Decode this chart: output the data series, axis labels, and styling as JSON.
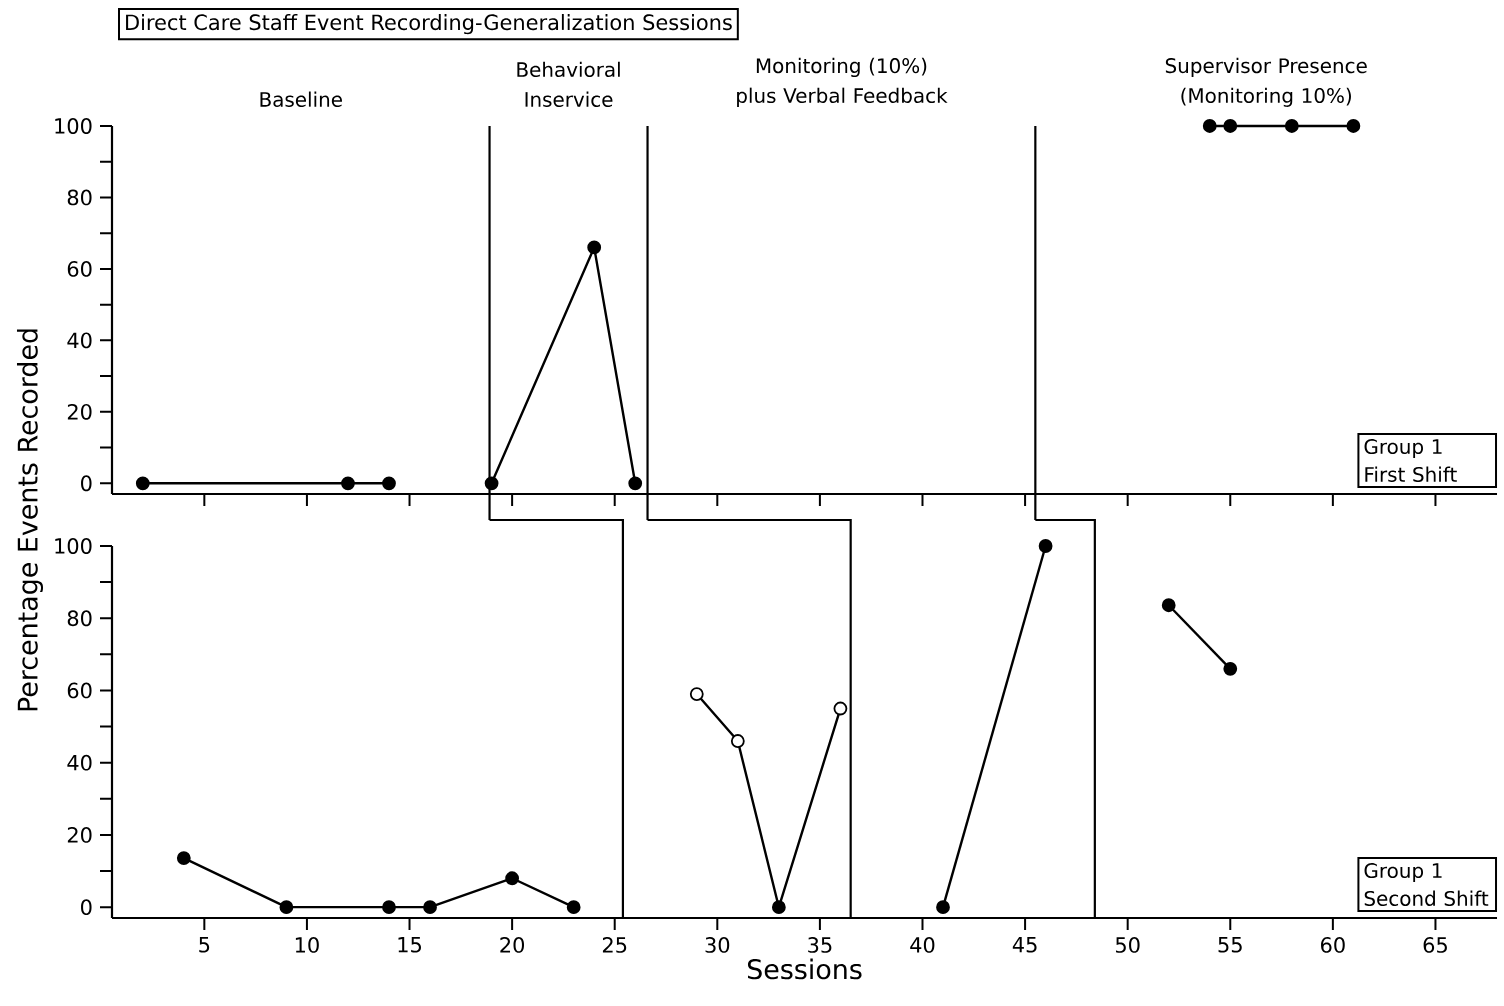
{
  "chart_data": [
    {
      "type": "line",
      "title": "Direct Care Staff Event Recording-Generalization Sessions",
      "ylabel": "Percentage Events Recorded",
      "xlim": [
        0.5,
        68
      ],
      "ylim": [
        -3,
        100
      ],
      "xticks": [
        5,
        10,
        15,
        20,
        25,
        30,
        35,
        40,
        45,
        50,
        55,
        60,
        65
      ],
      "yticks": [
        0,
        {
          "value": 10,
          "label": null
        },
        20,
        {
          "value": 30,
          "label": null
        },
        40,
        {
          "value": 50,
          "label": null
        },
        60,
        {
          "value": 70,
          "label": null
        },
        80,
        {
          "value": 90,
          "label": null
        },
        100
      ],
      "tick_labels": "y",
      "marker": "circle",
      "line_style": "solid",
      "series": [
        {
          "color": "#000000",
          "x": [
            2,
            12,
            14
          ],
          "values": [
            0,
            0,
            0
          ]
        },
        {
          "color": "#000000",
          "x": [
            19,
            24,
            26
          ],
          "values": [
            0,
            66,
            0
          ]
        },
        {
          "color": "#000000",
          "x": [
            54,
            55,
            58,
            61
          ],
          "values": [
            100,
            100,
            100,
            100
          ]
        }
      ],
      "ref_lines": [
        {
          "axis": "x",
          "value": 18.9,
          "color": "#000000"
        },
        {
          "axis": "x",
          "value": 26.6,
          "color": "#000000"
        },
        {
          "axis": "x",
          "value": 45.5,
          "color": "#000000"
        }
      ],
      "annotations": [
        "Baseline",
        "Behavioral Inservice",
        "Monitoring (10%) plus Verbal Feedback",
        "Supervisor Presence (Monitoring 10%)",
        "Group 1 First Shift"
      ]
    },
    {
      "type": "line",
      "xlabel": "Sessions",
      "xlim": [
        0.5,
        68
      ],
      "ylim": [
        -3,
        100
      ],
      "xticks": [
        5,
        10,
        15,
        20,
        25,
        30,
        35,
        40,
        45,
        50,
        55,
        60,
        65
      ],
      "yticks": [
        0,
        {
          "value": 10,
          "label": null
        },
        20,
        {
          "value": 30,
          "label": null
        },
        40,
        {
          "value": 50,
          "label": null
        },
        60,
        {
          "value": 70,
          "label": null
        },
        80,
        {
          "value": 90,
          "label": null
        },
        100
      ],
      "marker": "circle",
      "line_style": "solid",
      "series": [
        {
          "color": "#000000",
          "x": [
            4,
            9,
            14,
            16,
            20,
            23
          ],
          "values": [
            13.6,
            0,
            0,
            0,
            8,
            0
          ]
        },
        {
          "color": "#000000",
          "colors": [
            "#ffffff",
            "#ffffff",
            "#000000",
            "#ffffff"
          ],
          "x": [
            29,
            31,
            33,
            36
          ],
          "values": [
            59,
            46,
            0,
            55
          ]
        },
        {
          "color": "#000000",
          "x": [
            41,
            46
          ],
          "values": [
            0,
            100
          ]
        },
        {
          "color": "#000000",
          "x": [
            52,
            55
          ],
          "values": [
            83.6,
            66
          ]
        }
      ],
      "ref_lines": [
        {
          "axis": "x",
          "value": 25.4,
          "color": "#000000"
        },
        {
          "axis": "x",
          "value": 36.5,
          "color": "#000000"
        },
        {
          "axis": "x",
          "value": 48.4,
          "color": "#000000"
        }
      ],
      "annotations": [
        "Group 1 Second Shift"
      ]
    }
  ]
}
